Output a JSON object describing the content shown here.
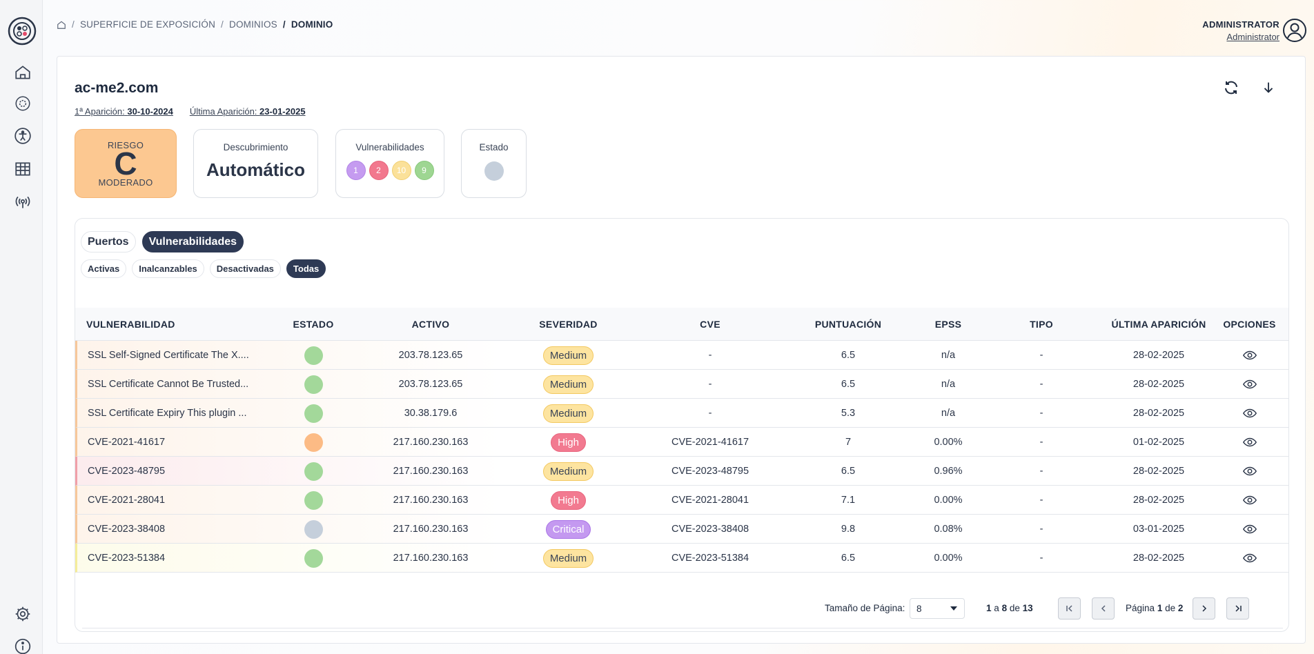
{
  "breadcrumb": {
    "items": [
      "SUPERFICIE DE EXPOSICIÓN",
      "DOMINIOS"
    ],
    "current": "DOMINIO",
    "separator": "/"
  },
  "user": {
    "name": "ADMINISTRATOR",
    "role": "Administrator"
  },
  "domain": {
    "name": "ac-me2.com",
    "first_seen_label": "1ª Aparición:",
    "first_seen": "30-10-2024",
    "last_seen_label": "Última Aparición:",
    "last_seen": "23-01-2025"
  },
  "stats": {
    "risk_label": "RIESGO",
    "risk_grade": "C",
    "risk_level": "MODERADO",
    "discovery_label": "Descubrimiento",
    "discovery_value": "Automático",
    "vulns_label": "Vulnerabilidades",
    "vuln_counts": [
      {
        "value": "1",
        "color": "#c59bf0",
        "border": "#b184e6"
      },
      {
        "value": "2",
        "color": "#f2788e",
        "border": "#e7637b"
      },
      {
        "value": "10",
        "color": "#fbe19a",
        "border": "#f1cf72"
      },
      {
        "value": "9",
        "color": "#9ed692",
        "border": "#87c87a"
      }
    ],
    "estado_label": "Estado"
  },
  "tabs": [
    "Puertos",
    "Vulnerabilidades"
  ],
  "active_tab": "Vulnerabilidades",
  "filters": [
    "Activas",
    "Inalcanzables",
    "Desactivadas",
    "Todas"
  ],
  "active_filter": "Todas",
  "table": {
    "columns": [
      "VULNERABILIDAD",
      "ESTADO",
      "ACTIVO",
      "SEVERIDAD",
      "CVE",
      "PUNTUACIÓN",
      "EPSS",
      "TIPO",
      "ÚLTIMA APARICIÓN",
      "OPCIONES"
    ],
    "rows": [
      {
        "name": "SSL Self-Signed Certificate The X....",
        "status": "green",
        "asset": "203.78.123.65",
        "severity": "Medium",
        "cve": "-",
        "score": "6.5",
        "epss": "n/a",
        "type": "-",
        "last_seen": "28-02-2025",
        "accent": "#f7c79a"
      },
      {
        "name": "SSL Certificate Cannot Be Trusted...",
        "status": "green",
        "asset": "203.78.123.65",
        "severity": "Medium",
        "cve": "-",
        "score": "6.5",
        "epss": "n/a",
        "type": "-",
        "last_seen": "28-02-2025",
        "accent": "#f7c79a"
      },
      {
        "name": "SSL Certificate Expiry This plugin ...",
        "status": "green",
        "asset": "30.38.179.6",
        "severity": "Medium",
        "cve": "-",
        "score": "5.3",
        "epss": "n/a",
        "type": "-",
        "last_seen": "28-02-2025",
        "accent": "#f7c79a"
      },
      {
        "name": "CVE-2021-41617",
        "status": "orange",
        "asset": "217.160.230.163",
        "severity": "High",
        "cve": "CVE-2021-41617",
        "score": "7",
        "epss": "0.00%",
        "type": "-",
        "last_seen": "01-02-2025",
        "accent": "#f7c79a"
      },
      {
        "name": "CVE-2023-48795",
        "status": "green",
        "asset": "217.160.230.163",
        "severity": "Medium",
        "cve": "CVE-2023-48795",
        "score": "6.5",
        "epss": "0.96%",
        "type": "-",
        "last_seen": "28-02-2025",
        "accent": "#f0a0a8"
      },
      {
        "name": "CVE-2021-28041",
        "status": "green",
        "asset": "217.160.230.163",
        "severity": "High",
        "cve": "CVE-2021-28041",
        "score": "7.1",
        "epss": "0.00%",
        "type": "-",
        "last_seen": "28-02-2025",
        "accent": "#f7c79a"
      },
      {
        "name": "CVE-2023-38408",
        "status": "grey",
        "asset": "217.160.230.163",
        "severity": "Critical",
        "cve": "CVE-2023-38408",
        "score": "9.8",
        "epss": "0.08%",
        "type": "-",
        "last_seen": "03-01-2025",
        "accent": "#f7c79a"
      },
      {
        "name": "CVE-2023-51384",
        "status": "green",
        "asset": "217.160.230.163",
        "severity": "Medium",
        "cve": "CVE-2023-51384",
        "score": "6.5",
        "epss": "0.00%",
        "type": "-",
        "last_seen": "28-02-2025",
        "accent": "#f5ed9a"
      }
    ]
  },
  "pagination": {
    "page_size_label": "Tamaño de Página:",
    "page_size": "8",
    "range_from": "1",
    "range_a": "a",
    "range_to": "8",
    "range_de": "de",
    "total": "13",
    "page_label": "Página",
    "page": "1",
    "page_de": "de",
    "pages": "2"
  },
  "colors": {
    "status_green": "#a3d89a",
    "status_orange": "#fcbb85",
    "status_grey": "#c5cfdb",
    "sev_medium_bg": "#fde4a0",
    "sev_medium_border": "#f3c85f",
    "sev_high_bg": "#f27a90",
    "sev_critical_bg": "#c499f0",
    "accent_dark": "#2e3a55"
  }
}
